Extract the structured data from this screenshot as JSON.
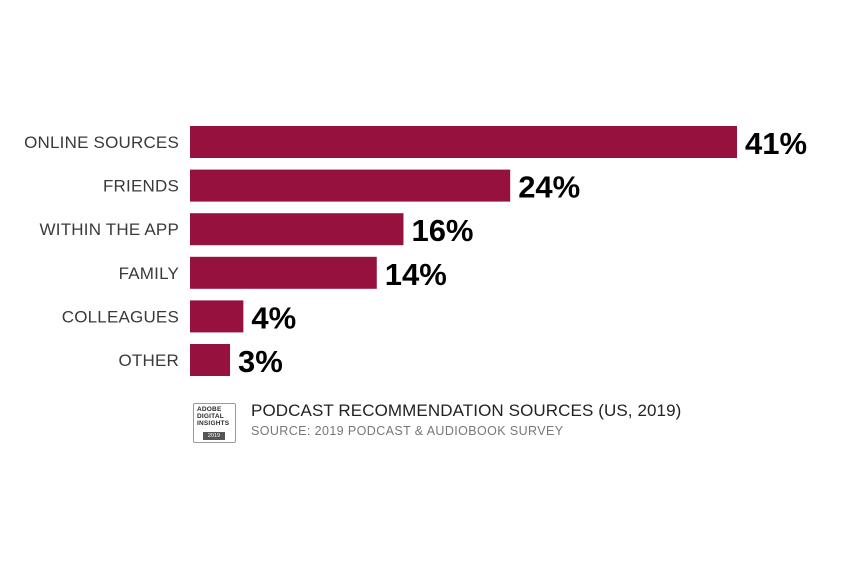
{
  "chart_data": {
    "type": "bar",
    "orientation": "horizontal",
    "categories": [
      "ONLINE SOURCES",
      "FRIENDS",
      "WITHIN THE APP",
      "FAMILY",
      "COLLEAGUES",
      "OTHER"
    ],
    "values": [
      41,
      24,
      16,
      14,
      4,
      3
    ],
    "value_labels": [
      "41%",
      "24%",
      "16%",
      "14%",
      "4%",
      "3%"
    ],
    "bar_color": "#97113f",
    "title": "PODCAST RECOMMENDATION SOURCES (US, 2019)",
    "subtitle": "SOURCE: 2019 PODCAST & AUDIOBOOK SURVEY",
    "xlim": [
      0,
      41
    ],
    "grid": false,
    "legend": "none"
  },
  "logo": {
    "lines": [
      "ADOBE",
      "DIGITAL",
      "INSIGHTS"
    ],
    "year": "2019"
  }
}
